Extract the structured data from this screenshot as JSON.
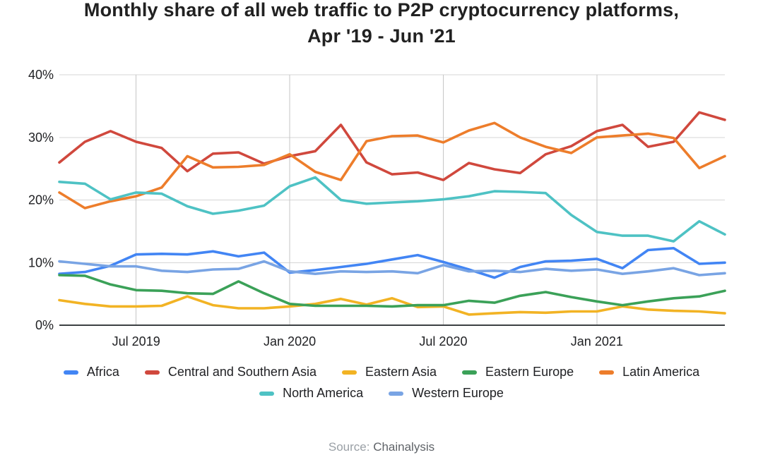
{
  "title": {
    "line1": "Monthly share of all web traffic to P2P cryptocurrency platforms,",
    "line2": "Apr '19 - Jun '21"
  },
  "axes": {
    "y_tick_labels": [
      "0%",
      "10%",
      "20%",
      "30%",
      "40%"
    ],
    "y_tick_values": [
      0,
      10,
      20,
      30,
      40
    ],
    "x_tick_labels": [
      "Jul 2019",
      "Jan 2020",
      "Jul 2020",
      "Jan 2021"
    ],
    "x_tick_month_index": [
      3,
      9,
      15,
      21
    ],
    "ylim": [
      0,
      40
    ]
  },
  "source": {
    "label": "Source:",
    "name": "Chainalysis"
  },
  "colors": {
    "grid_horizontal": "#d5d5d5",
    "grid_vertical": "#c6c6c6",
    "axis_line": "#3c4043",
    "tick_text": "#202124"
  },
  "chart_data": {
    "type": "line",
    "title": "Monthly share of all web traffic to P2P cryptocurrency platforms, Apr '19 - Jun '21",
    "xlabel": "",
    "ylabel": "",
    "ylim": [
      0,
      40
    ],
    "grid": true,
    "legend_position": "bottom",
    "x": [
      "Apr '19",
      "May '19",
      "Jun '19",
      "Jul '19",
      "Aug '19",
      "Sep '19",
      "Oct '19",
      "Nov '19",
      "Dec '19",
      "Jan '20",
      "Feb '20",
      "Mar '20",
      "Apr '20",
      "May '20",
      "Jun '20",
      "Jul '20",
      "Aug '20",
      "Sep '20",
      "Oct '20",
      "Nov '20",
      "Dec '20",
      "Jan '21",
      "Feb '21",
      "Mar '21",
      "Apr '21",
      "May '21",
      "Jun '21"
    ],
    "series": [
      {
        "name": "Africa",
        "color": "#4285F4",
        "legend_row": 0,
        "values": [
          8.2,
          8.5,
          9.5,
          11.3,
          11.4,
          11.3,
          11.8,
          11.0,
          11.6,
          8.4,
          8.8,
          9.3,
          9.8,
          10.5,
          11.2,
          10.1,
          8.9,
          7.6,
          9.3,
          10.2,
          10.3,
          10.6,
          9.1,
          12.0,
          12.3,
          9.8,
          10.0
        ]
      },
      {
        "name": "Central and Southern Asia",
        "color": "#D0483D",
        "legend_row": 0,
        "values": [
          26.0,
          29.3,
          31.0,
          29.3,
          28.3,
          24.6,
          27.4,
          27.6,
          25.8,
          27.0,
          27.8,
          32.0,
          26.0,
          24.1,
          24.4,
          23.2,
          25.9,
          24.9,
          24.3,
          27.3,
          28.6,
          31.0,
          32.0,
          28.5,
          29.3,
          34.0,
          32.8
        ]
      },
      {
        "name": "Eastern Asia",
        "color": "#F2B324",
        "legend_row": 0,
        "values": [
          4.0,
          3.4,
          3.0,
          3.0,
          3.1,
          4.6,
          3.2,
          2.7,
          2.7,
          3.0,
          3.4,
          4.2,
          3.3,
          4.3,
          2.9,
          3.0,
          1.7,
          1.9,
          2.1,
          2.0,
          2.2,
          2.2,
          3.0,
          2.5,
          2.3,
          2.2,
          1.9
        ]
      },
      {
        "name": "Eastern Europe",
        "color": "#3BA158",
        "legend_row": 0,
        "values": [
          8.0,
          7.9,
          6.5,
          5.6,
          5.5,
          5.1,
          5.0,
          7.0,
          5.1,
          3.4,
          3.1,
          3.1,
          3.1,
          3.0,
          3.2,
          3.2,
          3.9,
          3.6,
          4.7,
          5.3,
          4.5,
          3.8,
          3.2,
          3.8,
          4.3,
          4.6,
          5.5
        ]
      },
      {
        "name": "Latin America",
        "color": "#ED7D2B",
        "legend_row": 0,
        "values": [
          21.2,
          18.7,
          19.8,
          20.6,
          22.0,
          27.0,
          25.2,
          25.3,
          25.6,
          27.3,
          24.5,
          23.2,
          29.4,
          30.2,
          30.3,
          29.2,
          31.1,
          32.3,
          30.0,
          28.5,
          27.5,
          30.0,
          30.3,
          30.6,
          29.9,
          25.1,
          27.0
        ]
      },
      {
        "name": "North America",
        "color": "#4EC2C4",
        "legend_row": 1,
        "values": [
          22.9,
          22.6,
          20.1,
          21.2,
          21.0,
          19.0,
          17.8,
          18.3,
          19.1,
          22.2,
          23.6,
          20.0,
          19.4,
          19.6,
          19.8,
          20.1,
          20.6,
          21.4,
          21.3,
          21.1,
          17.6,
          14.9,
          14.3,
          14.3,
          13.4,
          16.6,
          14.5
        ]
      },
      {
        "name": "Western Europe",
        "color": "#79A4E4",
        "legend_row": 1,
        "values": [
          10.2,
          9.8,
          9.4,
          9.4,
          8.7,
          8.5,
          8.9,
          9.0,
          10.2,
          8.6,
          8.2,
          8.6,
          8.5,
          8.6,
          8.3,
          9.6,
          8.6,
          8.7,
          8.5,
          9.0,
          8.7,
          8.9,
          8.2,
          8.6,
          9.1,
          8.0,
          8.3
        ]
      }
    ]
  }
}
